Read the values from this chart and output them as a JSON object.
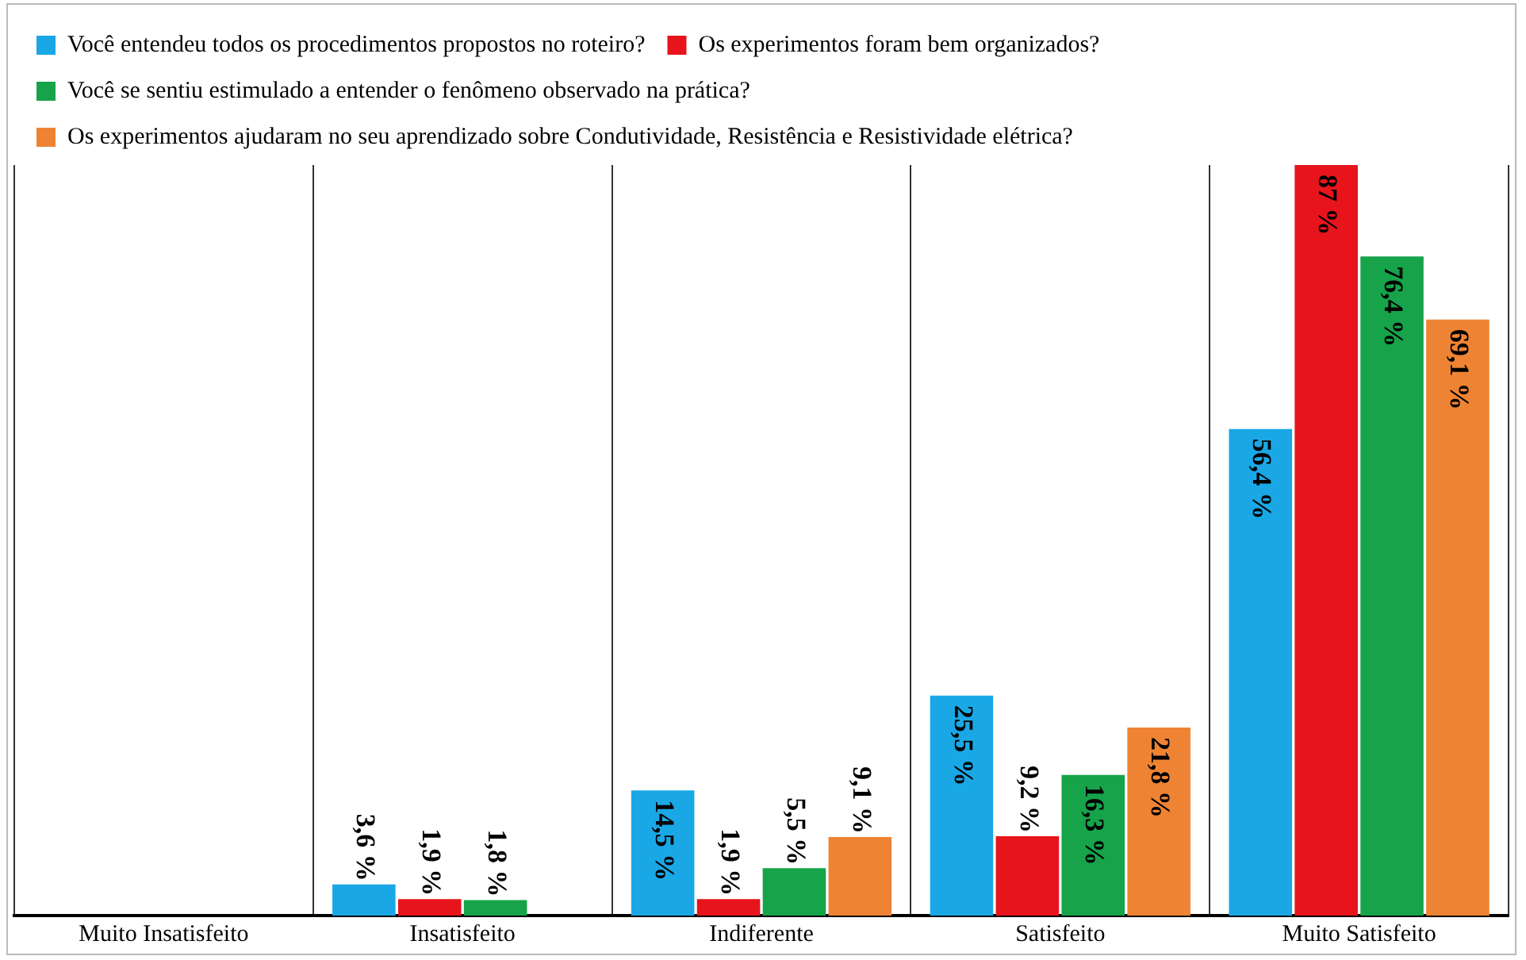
{
  "chart_data": {
    "type": "bar",
    "categories": [
      "Muito Insatisfeito",
      "Insatisfeito",
      "Indiferente",
      "Satisfeito",
      "Muito Satisfeito"
    ],
    "series": [
      {
        "name": "Você entendeu todos os procedimentos propostos no roteiro?",
        "color": "#1aa7e6",
        "values": [
          null,
          3.6,
          14.5,
          25.5,
          56.4
        ],
        "value_labels": [
          null,
          "3,6 %",
          "14,5 %",
          "25,5 %",
          "56,4 %"
        ]
      },
      {
        "name": "Os experimentos foram bem organizados?",
        "color": "#e8141c",
        "values": [
          null,
          1.9,
          1.9,
          9.2,
          87
        ],
        "value_labels": [
          null,
          "1,9 %",
          "1,9 %",
          "9,2 %",
          "87 %"
        ]
      },
      {
        "name": "Você se sentiu estimulado a entender o fenômeno observado na prática?",
        "color": "#16a34a",
        "values": [
          null,
          1.8,
          5.5,
          16.3,
          76.4
        ],
        "value_labels": [
          null,
          "1,8 %",
          "5,5 %",
          "16,3 %",
          "76,4 %"
        ]
      },
      {
        "name": "Os experimentos ajudaram no seu aprendizado sobre Condutividade, Resistência e Resistividade elétrica?",
        "color": "#ee8433",
        "values": [
          null,
          null,
          9.1,
          21.8,
          69.1
        ],
        "value_labels": [
          null,
          null,
          "9,1 %",
          "21,8 %",
          "69,1 %"
        ]
      }
    ],
    "ylim": [
      0,
      87
    ],
    "grid": "x",
    "legend": "top left",
    "tick_labels": "x"
  }
}
